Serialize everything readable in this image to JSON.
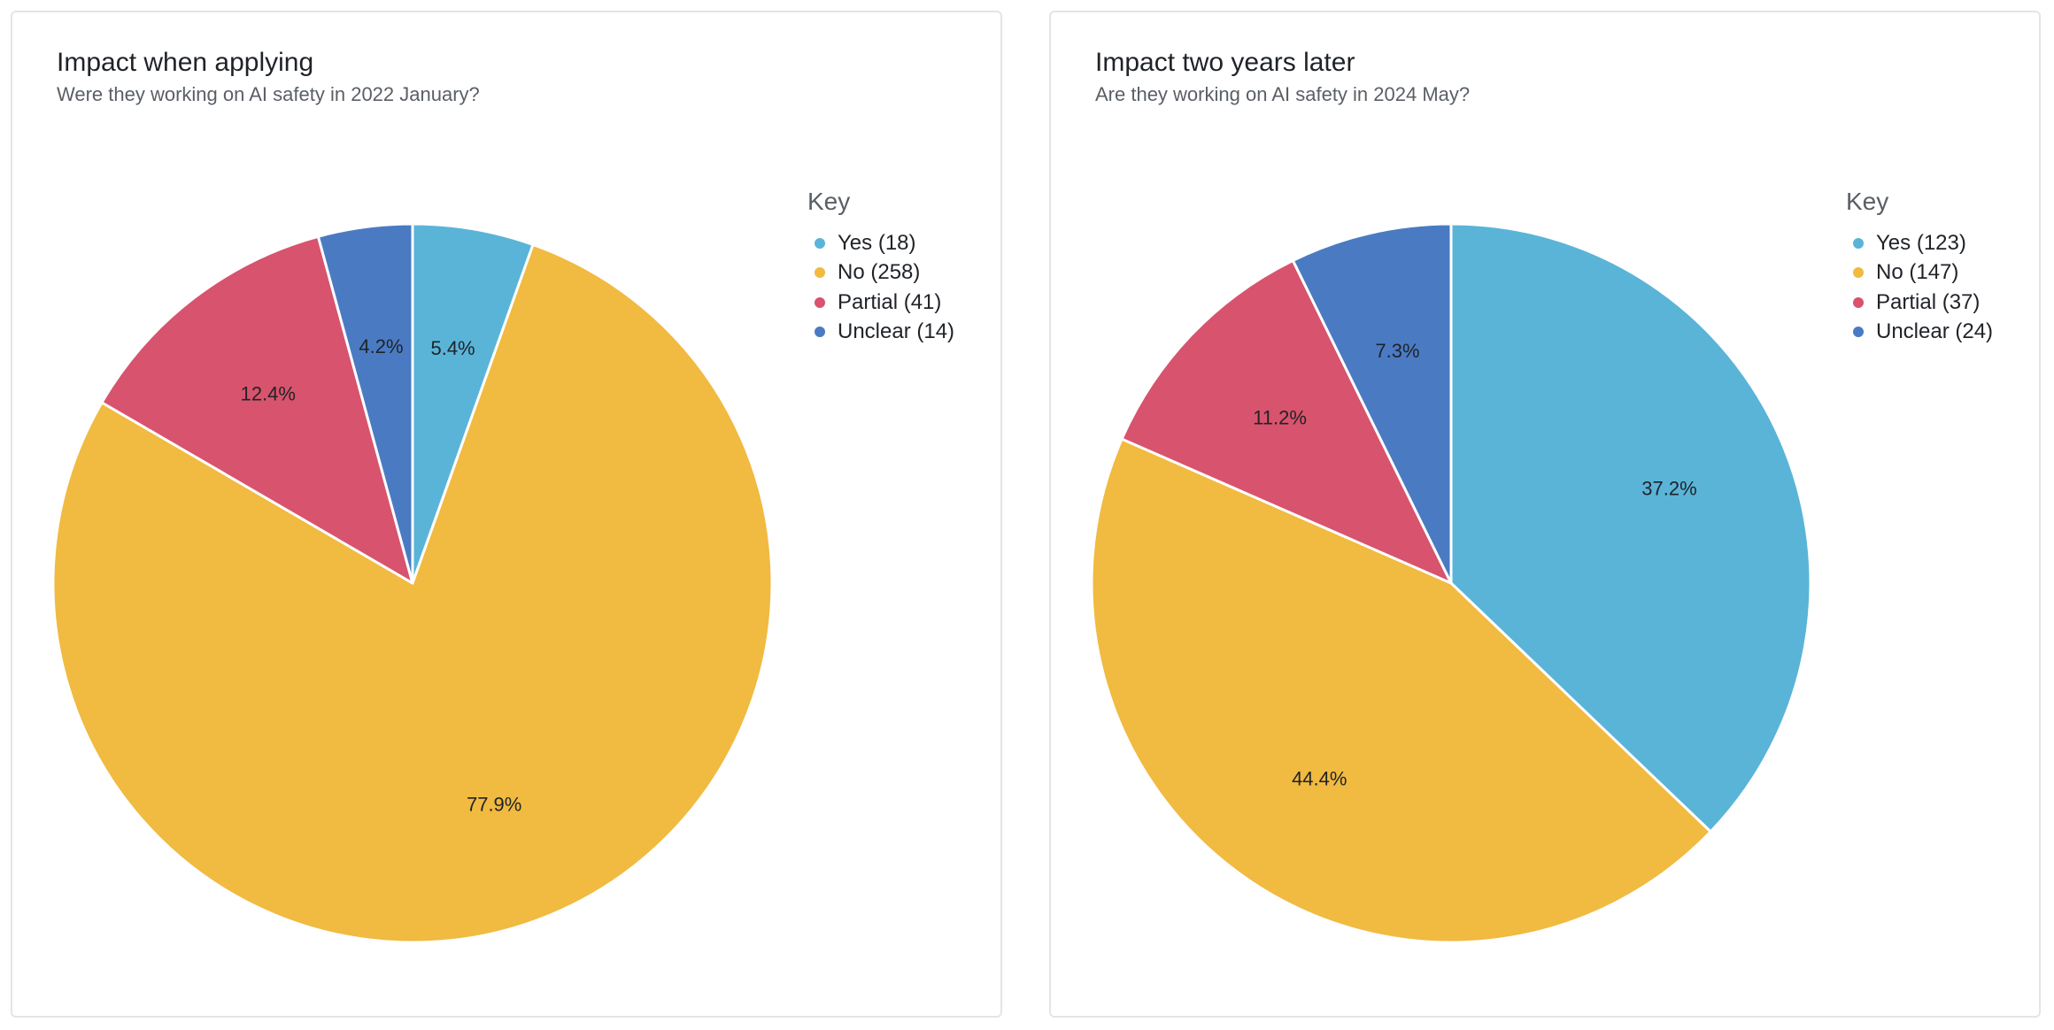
{
  "chart_data": [
    {
      "type": "pie",
      "title": "Impact when applying",
      "subtitle": "Were they working on AI safety in 2022 January?",
      "legend_title": "Key",
      "legend_position": "right",
      "slices": [
        {
          "name": "Yes",
          "value": 18,
          "legend_label": "Yes (18)",
          "percent_label": "5.4%",
          "color": "#5ab4d8"
        },
        {
          "name": "No",
          "value": 258,
          "legend_label": "No (258)",
          "percent_label": "77.9%",
          "color": "#f1ba40"
        },
        {
          "name": "Partial",
          "value": 41,
          "legend_label": "Partial (41)",
          "percent_label": "12.4%",
          "color": "#d8536d"
        },
        {
          "name": "Unclear",
          "value": 14,
          "legend_label": "Unclear (14)",
          "percent_label": "4.2%",
          "color": "#4a7bc2"
        }
      ]
    },
    {
      "type": "pie",
      "title": "Impact two years later",
      "subtitle": "Are they working on AI safety in 2024 May?",
      "legend_title": "Key",
      "legend_position": "right",
      "slices": [
        {
          "name": "Yes",
          "value": 123,
          "legend_label": "Yes (123)",
          "percent_label": "37.2%",
          "color": "#5ab4d8"
        },
        {
          "name": "No",
          "value": 147,
          "legend_label": "No (147)",
          "percent_label": "44.4%",
          "color": "#f1ba40"
        },
        {
          "name": "Partial",
          "value": 37,
          "legend_label": "Partial (37)",
          "percent_label": "11.2%",
          "color": "#d8536d"
        },
        {
          "name": "Unclear",
          "value": 24,
          "legend_label": "Unclear (24)",
          "percent_label": "7.3%",
          "color": "#4a7bc2"
        }
      ]
    }
  ]
}
